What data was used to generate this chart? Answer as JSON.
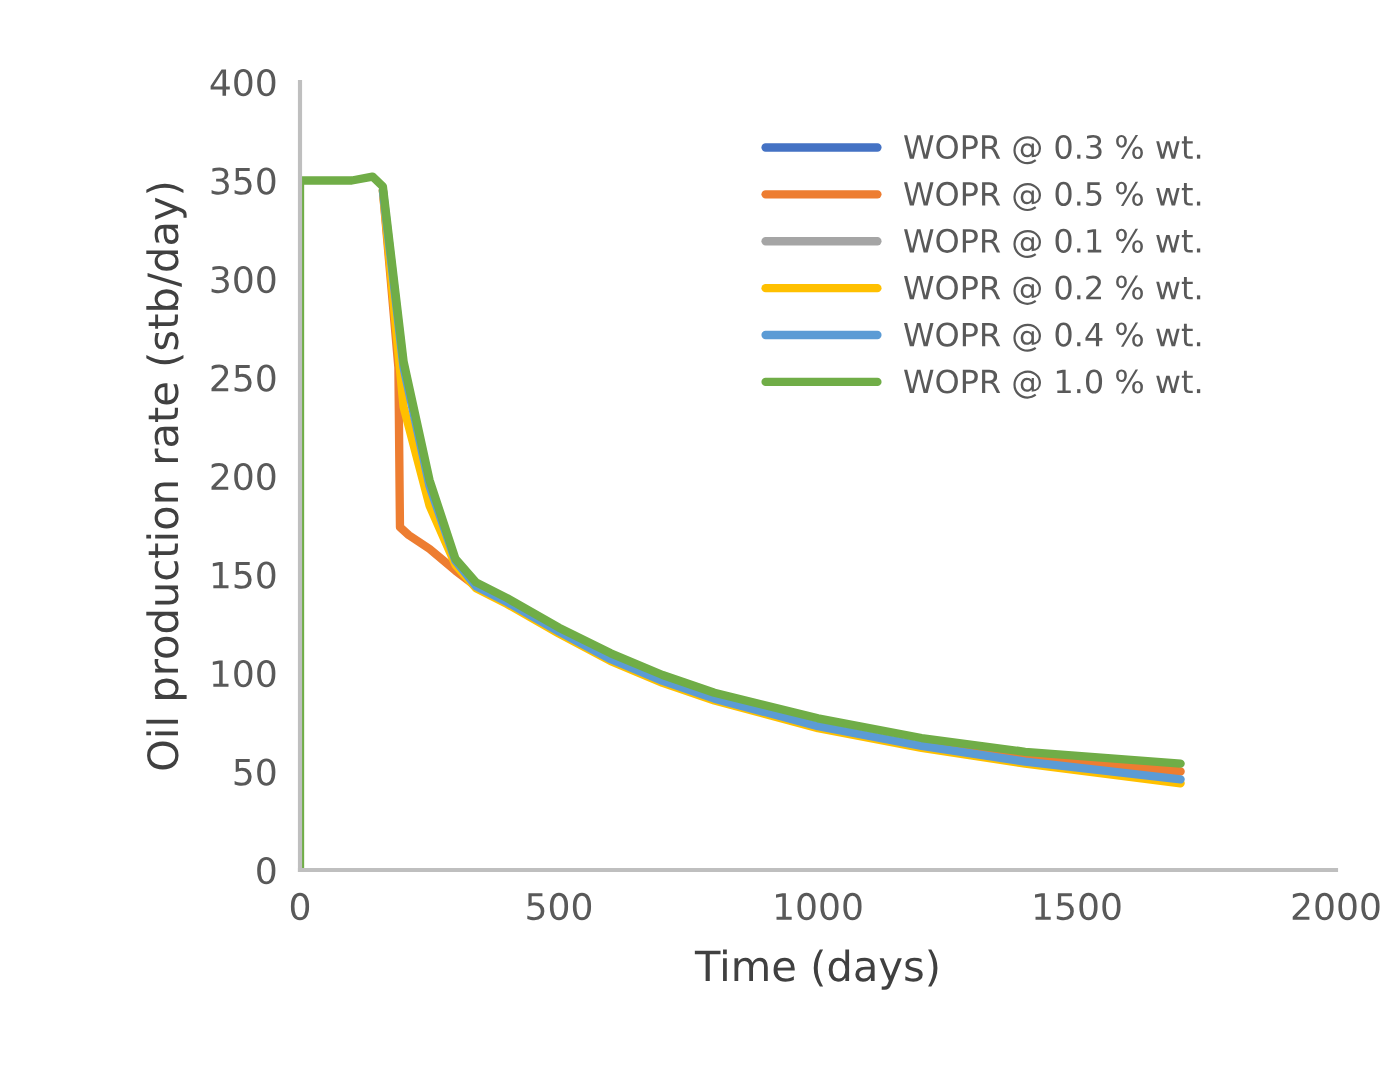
{
  "chart_data": {
    "type": "line",
    "xlabel": "Time (days)",
    "ylabel": "Oil production rate (stb/day)",
    "xlim": [
      0,
      2000
    ],
    "xticks": [
      0,
      500,
      1000,
      1500,
      2000
    ],
    "ylim": [
      0,
      400
    ],
    "yticks": [
      0,
      50,
      100,
      150,
      200,
      250,
      300,
      350,
      400
    ],
    "grid": false,
    "legend": "top right",
    "marker": "none",
    "line_style": "solid",
    "series": [
      {
        "name": "WOPR @ 0.3 % wt.",
        "color": "#4472c4"
      },
      {
        "name": "WOPR @ 0.5 % wt.",
        "color": "#ed7d31",
        "x": [
          160,
          190,
          193,
          210,
          250,
          300,
          340,
          400,
          500,
          600,
          700,
          800,
          1000,
          1200,
          1400,
          1700
        ],
        "values": [
          345,
          255,
          174,
          170,
          163,
          152,
          144,
          null,
          null,
          null,
          null,
          null,
          null,
          65,
          58,
          50
        ]
      },
      {
        "name": "WOPR @ 0.1 % wt.",
        "color": "#a5a5a5"
      },
      {
        "name": "WOPR @ 0.2 % wt.",
        "color": "#ffc000",
        "x": [
          160,
          200,
          250,
          300,
          340,
          400,
          500,
          600,
          700,
          800,
          1000,
          1200,
          1400,
          1700
        ],
        "values": [
          345,
          235,
          185,
          155,
          143,
          135,
          120,
          106,
          95,
          86,
          72,
          62,
          54,
          44
        ]
      },
      {
        "name": "WOPR @ 0.4 % wt.",
        "color": "#5b9bd5",
        "x": [
          160,
          200,
          250,
          300,
          340,
          400,
          500,
          600,
          700,
          800,
          1000,
          1200,
          1400,
          1700
        ],
        "values": [
          345,
          255,
          195,
          157,
          144,
          136,
          121,
          107,
          96,
          87,
          73,
          63,
          55,
          46
        ]
      },
      {
        "name": "WOPR @ 1.0 % wt.",
        "color": "#70ad47",
        "x": [
          0,
          0,
          100,
          140,
          160,
          200,
          250,
          300,
          340,
          400,
          500,
          600,
          700,
          800,
          1000,
          1200,
          1400,
          1700
        ],
        "values": [
          0,
          350,
          350,
          352,
          347,
          258,
          198,
          158,
          146,
          138,
          123,
          110,
          99,
          90,
          77,
          67,
          60,
          54
        ]
      }
    ]
  }
}
